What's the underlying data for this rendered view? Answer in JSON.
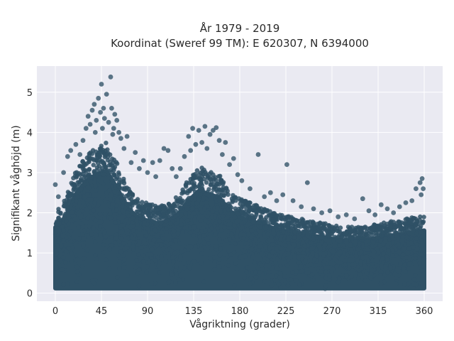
{
  "chart_data": {
    "type": "scatter",
    "title_line1": "År 1979 - 2019",
    "title_line2": "Koordinat (Sweref 99 TM): E 620307, N 6394000",
    "xlabel": "Vågriktning (grader)",
    "ylabel": "Signifikant våghöjd (m)",
    "xlim": [
      -18,
      378
    ],
    "ylim": [
      -0.2,
      5.65
    ],
    "xticks": [
      0,
      45,
      90,
      135,
      180,
      225,
      270,
      315,
      360
    ],
    "yticks": [
      0,
      1,
      2,
      3,
      4,
      5
    ],
    "grid": true,
    "background": "#eaeaf2",
    "marker_color": "#2f5166",
    "dense_envelope": {
      "x": [
        0,
        10,
        20,
        30,
        40,
        50,
        60,
        70,
        80,
        90,
        100,
        110,
        120,
        130,
        140,
        150,
        160,
        170,
        180,
        200,
        220,
        240,
        260,
        280,
        300,
        320,
        340,
        360
      ],
      "y": [
        2.0,
        2.3,
        3.0,
        3.4,
        3.6,
        3.7,
        3.2,
        2.6,
        2.3,
        2.2,
        2.1,
        2.2,
        2.4,
        2.8,
        3.1,
        3.0,
        2.9,
        2.5,
        2.3,
        2.1,
        1.9,
        1.8,
        1.7,
        1.6,
        1.6,
        1.7,
        1.8,
        1.9
      ]
    },
    "outliers": [
      {
        "x": 0,
        "y": 2.7
      },
      {
        "x": 3,
        "y": 2.4
      },
      {
        "x": 8,
        "y": 3.0
      },
      {
        "x": 12,
        "y": 3.4
      },
      {
        "x": 15,
        "y": 3.55
      },
      {
        "x": 20,
        "y": 3.7
      },
      {
        "x": 24,
        "y": 3.45
      },
      {
        "x": 27,
        "y": 3.8
      },
      {
        "x": 30,
        "y": 4.1
      },
      {
        "x": 32,
        "y": 4.4
      },
      {
        "x": 34,
        "y": 4.2
      },
      {
        "x": 36,
        "y": 4.55
      },
      {
        "x": 38,
        "y": 4.7
      },
      {
        "x": 40,
        "y": 4.3
      },
      {
        "x": 42,
        "y": 4.85
      },
      {
        "x": 44,
        "y": 4.5
      },
      {
        "x": 45,
        "y": 5.2
      },
      {
        "x": 47,
        "y": 4.6
      },
      {
        "x": 48,
        "y": 4.35
      },
      {
        "x": 50,
        "y": 4.95
      },
      {
        "x": 52,
        "y": 4.25
      },
      {
        "x": 54,
        "y": 5.38
      },
      {
        "x": 55,
        "y": 4.6
      },
      {
        "x": 57,
        "y": 4.1
      },
      {
        "x": 58,
        "y": 4.45
      },
      {
        "x": 60,
        "y": 4.3
      },
      {
        "x": 62,
        "y": 4.0
      },
      {
        "x": 64,
        "y": 3.85
      },
      {
        "x": 67,
        "y": 3.6
      },
      {
        "x": 70,
        "y": 3.9
      },
      {
        "x": 74,
        "y": 3.25
      },
      {
        "x": 78,
        "y": 3.5
      },
      {
        "x": 82,
        "y": 3.1
      },
      {
        "x": 86,
        "y": 3.3
      },
      {
        "x": 90,
        "y": 3.0
      },
      {
        "x": 95,
        "y": 3.25
      },
      {
        "x": 98,
        "y": 2.9
      },
      {
        "x": 102,
        "y": 3.3
      },
      {
        "x": 106,
        "y": 3.6
      },
      {
        "x": 110,
        "y": 3.55
      },
      {
        "x": 114,
        "y": 3.1
      },
      {
        "x": 118,
        "y": 2.9
      },
      {
        "x": 122,
        "y": 3.1
      },
      {
        "x": 126,
        "y": 3.4
      },
      {
        "x": 130,
        "y": 3.9
      },
      {
        "x": 132,
        "y": 3.55
      },
      {
        "x": 134,
        "y": 4.1
      },
      {
        "x": 137,
        "y": 3.7
      },
      {
        "x": 140,
        "y": 4.05
      },
      {
        "x": 143,
        "y": 3.75
      },
      {
        "x": 146,
        "y": 4.15
      },
      {
        "x": 148,
        "y": 3.6
      },
      {
        "x": 151,
        "y": 3.95
      },
      {
        "x": 154,
        "y": 4.05
      },
      {
        "x": 157,
        "y": 4.12
      },
      {
        "x": 160,
        "y": 3.8
      },
      {
        "x": 163,
        "y": 3.45
      },
      {
        "x": 166,
        "y": 3.75
      },
      {
        "x": 170,
        "y": 3.2
      },
      {
        "x": 174,
        "y": 3.35
      },
      {
        "x": 178,
        "y": 2.95
      },
      {
        "x": 182,
        "y": 2.8
      },
      {
        "x": 190,
        "y": 2.6
      },
      {
        "x": 198,
        "y": 3.45
      },
      {
        "x": 204,
        "y": 2.4
      },
      {
        "x": 210,
        "y": 2.5
      },
      {
        "x": 216,
        "y": 2.3
      },
      {
        "x": 222,
        "y": 2.45
      },
      {
        "x": 226,
        "y": 3.2
      },
      {
        "x": 232,
        "y": 2.3
      },
      {
        "x": 240,
        "y": 2.15
      },
      {
        "x": 246,
        "y": 2.75
      },
      {
        "x": 252,
        "y": 2.1
      },
      {
        "x": 260,
        "y": 2.0
      },
      {
        "x": 268,
        "y": 2.05
      },
      {
        "x": 276,
        "y": 1.9
      },
      {
        "x": 284,
        "y": 1.95
      },
      {
        "x": 292,
        "y": 1.85
      },
      {
        "x": 300,
        "y": 2.35
      },
      {
        "x": 306,
        "y": 2.05
      },
      {
        "x": 312,
        "y": 1.95
      },
      {
        "x": 318,
        "y": 2.2
      },
      {
        "x": 324,
        "y": 2.1
      },
      {
        "x": 330,
        "y": 2.0
      },
      {
        "x": 336,
        "y": 2.15
      },
      {
        "x": 342,
        "y": 2.25
      },
      {
        "x": 348,
        "y": 2.3
      },
      {
        "x": 352,
        "y": 2.6
      },
      {
        "x": 356,
        "y": 2.75
      },
      {
        "x": 358,
        "y": 2.85
      },
      {
        "x": 359,
        "y": 2.6
      },
      {
        "x": 357,
        "y": 2.45
      },
      {
        "x": 46,
        "y": 4.1
      },
      {
        "x": 56,
        "y": 3.95
      },
      {
        "x": 39,
        "y": 4.0
      }
    ]
  }
}
